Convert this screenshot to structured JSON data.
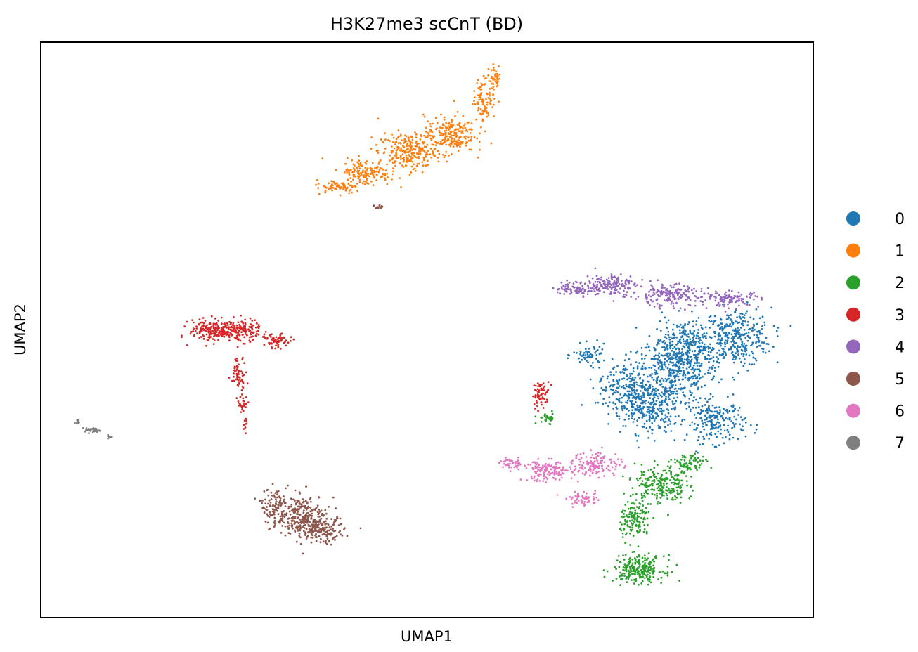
{
  "chart_data": {
    "type": "scatter",
    "title": "H3K27me3 scCnT (BD)",
    "xlabel": "UMAP1",
    "ylabel": "UMAP2",
    "ticks": "none",
    "grid": false,
    "legend_placement": "right outside",
    "xlim": [
      0,
      110
    ],
    "ylim": [
      0,
      82
    ],
    "legend": [
      {
        "label": "0",
        "color": "#1f77b4"
      },
      {
        "label": "1",
        "color": "#ff7f0e"
      },
      {
        "label": "2",
        "color": "#2ca02c"
      },
      {
        "label": "3",
        "color": "#d62728"
      },
      {
        "label": "4",
        "color": "#9467bd"
      },
      {
        "label": "5",
        "color": "#8c564b"
      },
      {
        "label": "6",
        "color": "#e377c2"
      },
      {
        "label": "7",
        "color": "#7f7f7f"
      }
    ],
    "clusters": [
      {
        "label": "0",
        "regions": [
          [
            90.2,
            34.9,
            5,
            4,
            420
          ],
          [
            99.2,
            39.9,
            4,
            3.5,
            320
          ],
          [
            86.2,
            29.9,
            4,
            3,
            300
          ],
          [
            96.2,
            27.9,
            3.5,
            2.5,
            200
          ],
          [
            78.2,
            37.4,
            2,
            1.2,
            60
          ],
          [
            92,
            39,
            4,
            3,
            260
          ],
          [
            83,
            33,
            3,
            3,
            150
          ]
        ]
      },
      {
        "label": "1",
        "regions": [
          [
            42.2,
            61.4,
            2.5,
            0.8,
            60
          ],
          [
            46.2,
            63.4,
            3,
            1.6,
            150
          ],
          [
            52.2,
            66.4,
            3.5,
            2.2,
            250
          ],
          [
            58.2,
            68.9,
            3,
            2.2,
            220
          ],
          [
            63.2,
            73.9,
            1.3,
            2.5,
            90
          ],
          [
            64.7,
            76.9,
            0.8,
            1.5,
            40
          ]
        ]
      },
      {
        "label": "2",
        "regions": [
          [
            88.2,
            18.9,
            3,
            2.3,
            220
          ],
          [
            84.7,
            13.9,
            1.8,
            2.3,
            140
          ],
          [
            85.2,
            6.9,
            3,
            1.6,
            250
          ],
          [
            72.2,
            28.4,
            1.2,
            0.6,
            30
          ],
          [
            92.2,
            21.9,
            2,
            1.2,
            80
          ]
        ]
      },
      {
        "label": "3",
        "regions": [
          [
            24.2,
            40.9,
            2.5,
            1.3,
            150
          ],
          [
            28.2,
            40.9,
            2.5,
            1.3,
            170
          ],
          [
            33.7,
            39.4,
            1.5,
            0.8,
            60
          ],
          [
            28.2,
            34.9,
            0.9,
            1.8,
            60
          ],
          [
            28.7,
            30.4,
            0.6,
            1.2,
            25
          ],
          [
            29.2,
            27.4,
            0.4,
            0.9,
            12
          ],
          [
            71.2,
            31.9,
            1,
            1.5,
            60
          ]
        ]
      },
      {
        "label": "4",
        "regions": [
          [
            76.2,
            46.9,
            2.5,
            0.8,
            80
          ],
          [
            81.2,
            47.4,
            3,
            1.3,
            160
          ],
          [
            89.2,
            45.9,
            4,
            1.3,
            180
          ],
          [
            98.2,
            45.4,
            3.5,
            0.9,
            110
          ]
        ]
      },
      {
        "label": "5",
        "regions": [
          [
            37.2,
            14.4,
            3,
            2.6,
            260
          ],
          [
            33.2,
            15.9,
            1.5,
            2,
            100
          ],
          [
            40.2,
            12.4,
            2.5,
            1.6,
            150
          ],
          [
            48.2,
            58.4,
            0.6,
            0.3,
            12
          ]
        ]
      },
      {
        "label": "6",
        "regions": [
          [
            72.2,
            20.9,
            3,
            1.2,
            150
          ],
          [
            79.2,
            21.9,
            3,
            1.5,
            130
          ],
          [
            77.2,
            16.9,
            2,
            0.8,
            60
          ],
          [
            67.2,
            21.9,
            1.5,
            0.6,
            40
          ]
        ]
      },
      {
        "label": "7",
        "regions": [
          [
            5.2,
            27.9,
            0.3,
            0.3,
            10
          ],
          [
            7.5,
            26.7,
            1.3,
            0.3,
            30
          ],
          [
            9.7,
            25.7,
            0.4,
            0.2,
            8
          ]
        ]
      }
    ]
  }
}
